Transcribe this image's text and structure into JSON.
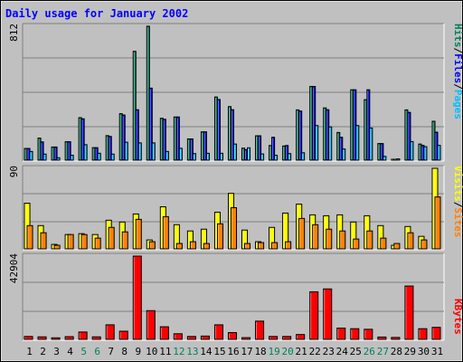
{
  "title": "Daily usage for January 2002",
  "colors": {
    "hits": "#00805c",
    "files": "#0000ff",
    "pages": "#00c0ff",
    "visits": "#ffff00",
    "sites": "#ff8000",
    "kbytes": "#ff0000",
    "background": "#c0c0c0",
    "title": "#0000ff",
    "weekend_day": "#00805c",
    "weekday_day": "#000000",
    "gridline": "#808080"
  },
  "chart_data": [
    {
      "type": "bar",
      "panel": "hits-files-pages",
      "title": "Daily usage for January 2002",
      "categories": [
        "1",
        "2",
        "3",
        "4",
        "5",
        "6",
        "7",
        "8",
        "9",
        "10",
        "11",
        "12",
        "13",
        "14",
        "15",
        "16",
        "17",
        "18",
        "19",
        "20",
        "21",
        "22",
        "23",
        "24",
        "25",
        "26",
        "27",
        "28",
        "29",
        "30",
        "31"
      ],
      "max_label": "812",
      "ylim": [
        0,
        812
      ],
      "legend": [
        {
          "key": "pages",
          "label": "Pages"
        },
        {
          "key": "files",
          "label": "Files"
        },
        {
          "key": "hits",
          "label": "Hits"
        }
      ],
      "separator": "/",
      "series": [
        {
          "name": "Hits",
          "key": "hits",
          "values": [
            71,
            134,
            80,
            112,
            258,
            76,
            149,
            282,
            660,
            812,
            254,
            262,
            129,
            172,
            383,
            325,
            73,
            148,
            89,
            86,
            305,
            447,
            317,
            168,
            427,
            367,
            101,
            4,
            305,
            98,
            236
          ]
        },
        {
          "name": "Files",
          "key": "files",
          "values": [
            71,
            111,
            80,
            112,
            251,
            76,
            144,
            274,
            306,
            437,
            248,
            262,
            129,
            172,
            368,
            306,
            64,
            148,
            139,
            89,
            298,
            447,
            306,
            139,
            427,
            427,
            101,
            4,
            290,
            90,
            170
          ]
        },
        {
          "name": "Pages",
          "key": "pages",
          "values": [
            53,
            37,
            15,
            30,
            94,
            42,
            37,
            109,
            105,
            105,
            53,
            72,
            40,
            42,
            42,
            98,
            75,
            38,
            30,
            40,
            45,
            210,
            202,
            68,
            210,
            195,
            23,
            8,
            113,
            82,
            90
          ]
        }
      ],
      "grid": true
    },
    {
      "type": "bar",
      "panel": "visits-sites",
      "categories": [
        "1",
        "2",
        "3",
        "4",
        "5",
        "6",
        "7",
        "8",
        "9",
        "10",
        "11",
        "12",
        "13",
        "14",
        "15",
        "16",
        "17",
        "18",
        "19",
        "20",
        "21",
        "22",
        "23",
        "24",
        "25",
        "26",
        "27",
        "28",
        "29",
        "30",
        "31"
      ],
      "max_label": "90",
      "ylim": [
        0,
        90
      ],
      "legend": [
        {
          "key": "sites",
          "label": "Sites"
        },
        {
          "key": "visits",
          "label": "Visits"
        }
      ],
      "separator": "/",
      "series": [
        {
          "name": "Visits",
          "key": "visits",
          "values": [
            51,
            26,
            5,
            16,
            17,
            16,
            32,
            30,
            39,
            10,
            47,
            27,
            20,
            22,
            41,
            62,
            21,
            8,
            24,
            40,
            50,
            38,
            37,
            38,
            30,
            37,
            26,
            4,
            25,
            14,
            90
          ]
        },
        {
          "name": "Sites",
          "key": "sites",
          "values": [
            26,
            18,
            4,
            16,
            16,
            12,
            24,
            19,
            33,
            8,
            36,
            6,
            8,
            6,
            28,
            46,
            6,
            7,
            7,
            8,
            34,
            27,
            22,
            20,
            11,
            20,
            12,
            6,
            18,
            10,
            58
          ]
        }
      ],
      "grid": true
    },
    {
      "type": "bar",
      "panel": "kbytes",
      "categories": [
        "1",
        "2",
        "3",
        "4",
        "5",
        "6",
        "7",
        "8",
        "9",
        "10",
        "11",
        "12",
        "13",
        "14",
        "15",
        "16",
        "17",
        "18",
        "19",
        "20",
        "21",
        "22",
        "23",
        "24",
        "25",
        "26",
        "27",
        "28",
        "29",
        "30",
        "31"
      ],
      "max_label": "42904",
      "ylim": [
        0,
        42904
      ],
      "legend": [
        {
          "key": "kbytes",
          "label": "KBytes"
        }
      ],
      "series": [
        {
          "name": "KBytes",
          "key": "kbytes",
          "values": [
            1500,
            1300,
            800,
            1400,
            3800,
            1300,
            7500,
            4200,
            42904,
            14800,
            6500,
            2900,
            1500,
            1700,
            7500,
            3500,
            900,
            9400,
            1500,
            1500,
            2500,
            24500,
            26000,
            5800,
            5500,
            5200,
            1200,
            1000,
            27500,
            5500,
            6200
          ]
        }
      ],
      "grid": true
    }
  ],
  "weekend_days": [
    "5",
    "6",
    "12",
    "13",
    "19",
    "20",
    "26",
    "27"
  ]
}
